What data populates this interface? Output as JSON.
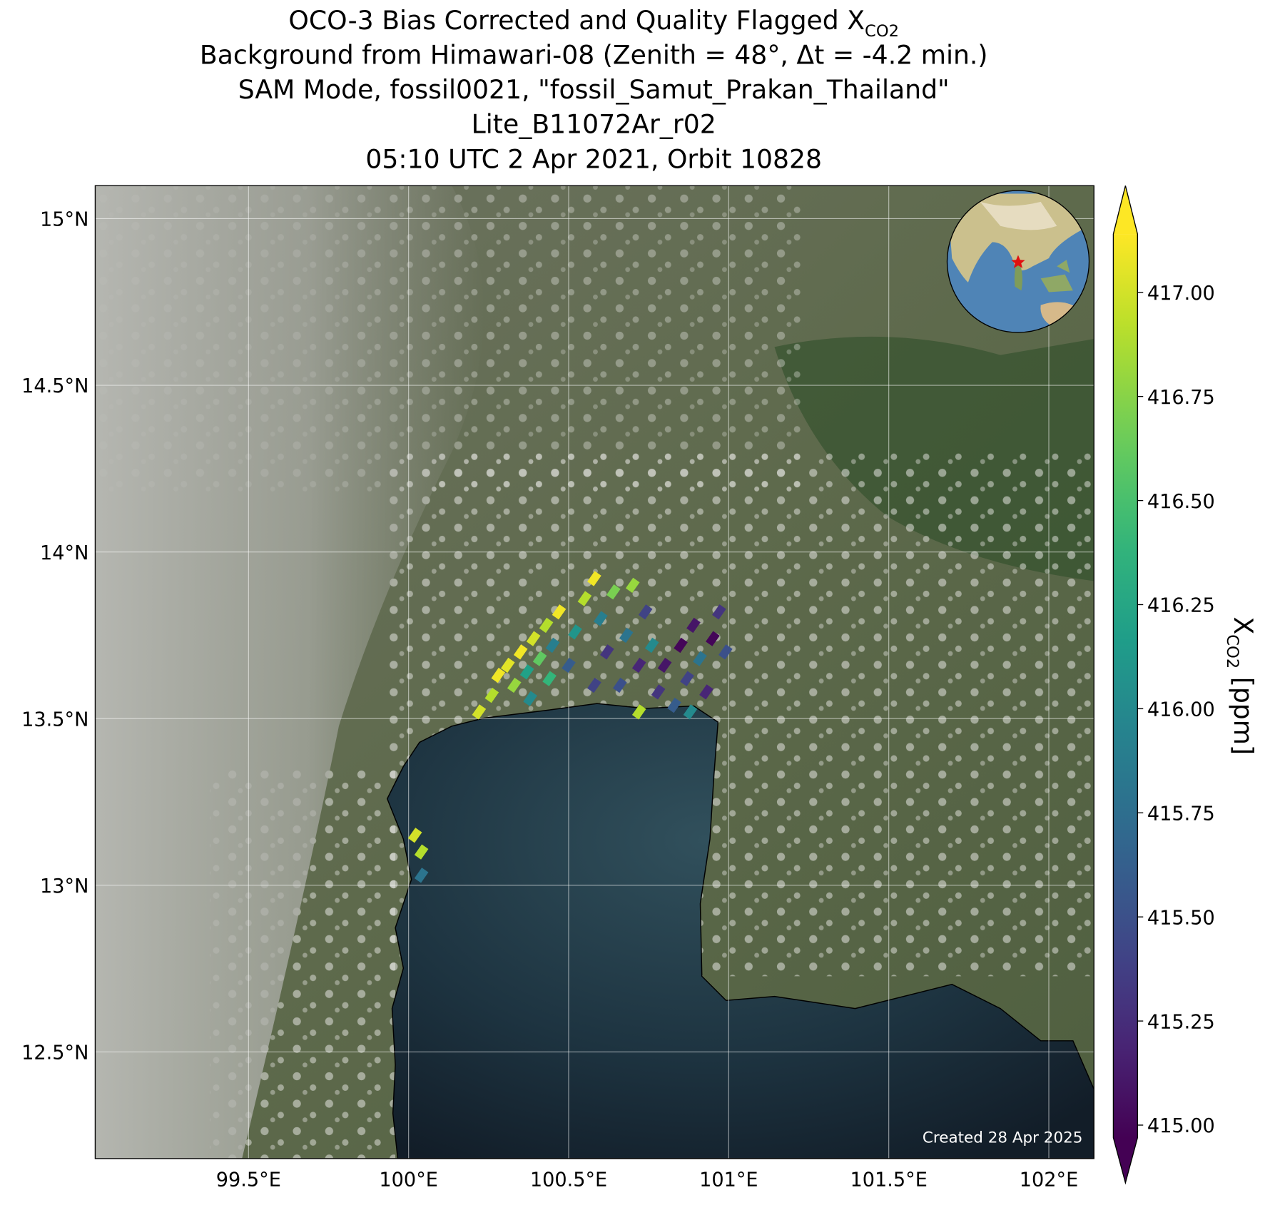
{
  "chart_data": {
    "type": "map-scatter",
    "title_lines": [
      {
        "text": "OCO-3 Bias Corrected and Quality Flagged X",
        "sub": "CO2"
      },
      "Background from Himawari-08 (Zenith = 48°, Δt = -4.2 min.)",
      "SAM Mode, fossil0021, \"fossil_Samut_Prakan_Thailand\"",
      "Lite_B11072Ar_r02",
      "05:10 UTC 2 Apr 2021, Orbit 10828"
    ],
    "colorbar_label": {
      "text": "X",
      "sub": "CO2",
      "unit": " [ppm]"
    },
    "credit": "Created 28 Apr 2025",
    "colormap": "viridis",
    "grid": true,
    "xlim": [
      99.021,
      102.141
    ],
    "ylim": [
      12.18,
      15.099
    ],
    "xticks": [
      {
        "value": 99.5,
        "label": "99.5°E"
      },
      {
        "value": 100,
        "label": "100°E"
      },
      {
        "value": 100.5,
        "label": "100.5°E"
      },
      {
        "value": 101,
        "label": "101°E"
      },
      {
        "value": 101.5,
        "label": "101.5°E"
      },
      {
        "value": 102,
        "label": "102°E"
      }
    ],
    "yticks": [
      {
        "value": 12.5,
        "label": "12.5°N"
      },
      {
        "value": 13,
        "label": "13°N"
      },
      {
        "value": 13.5,
        "label": "13.5°N"
      },
      {
        "value": 14,
        "label": "14°N"
      },
      {
        "value": 14.5,
        "label": "14.5°N"
      },
      {
        "value": 15,
        "label": "15°N"
      }
    ],
    "clim": [
      414.97,
      417.14
    ],
    "cticks": [
      {
        "value": 415,
        "label": "415.00"
      },
      {
        "value": 415.25,
        "label": "415.25"
      },
      {
        "value": 415.5,
        "label": "415.50"
      },
      {
        "value": 415.75,
        "label": "415.75"
      },
      {
        "value": 416,
        "label": "416.00"
      },
      {
        "value": 416.25,
        "label": "416.25"
      },
      {
        "value": 416.5,
        "label": "416.50"
      },
      {
        "value": 416.75,
        "label": "416.75"
      },
      {
        "value": 417,
        "label": "417.00"
      }
    ],
    "x": [
      100.22,
      100.26,
      100.28,
      100.31,
      100.33,
      100.35,
      100.37,
      100.39,
      100.41,
      100.43,
      100.45,
      100.47,
      100.38,
      100.44,
      100.5,
      100.52,
      100.55,
      100.58,
      100.6,
      100.62,
      100.64,
      100.66,
      100.68,
      100.7,
      100.72,
      100.74,
      100.76,
      100.58,
      100.72,
      100.78,
      100.8,
      100.83,
      100.85,
      100.87,
      100.89,
      100.91,
      100.93,
      100.95,
      100.97,
      100.99,
      100.88,
      100.02,
      100.04,
      100.04
    ],
    "y": [
      13.52,
      13.57,
      13.63,
      13.66,
      13.6,
      13.7,
      13.64,
      13.74,
      13.68,
      13.78,
      13.72,
      13.82,
      13.56,
      13.62,
      13.66,
      13.76,
      13.86,
      13.92,
      13.8,
      13.7,
      13.88,
      13.6,
      13.75,
      13.9,
      13.66,
      13.82,
      13.72,
      13.6,
      13.52,
      13.58,
      13.66,
      13.54,
      13.72,
      13.62,
      13.78,
      13.68,
      13.58,
      13.74,
      13.82,
      13.7,
      13.52,
      13.15,
      13.1,
      13.03
    ],
    "values": [
      417.0,
      416.9,
      417.1,
      417.05,
      416.8,
      417.1,
      416.2,
      417.0,
      416.6,
      416.9,
      415.9,
      417.1,
      416.0,
      416.4,
      415.6,
      416.1,
      416.9,
      417.1,
      415.9,
      415.3,
      416.7,
      415.5,
      415.8,
      416.8,
      415.2,
      415.4,
      416.0,
      415.4,
      416.9,
      415.3,
      415.1,
      415.6,
      415.0,
      415.4,
      415.1,
      415.8,
      415.2,
      415.0,
      415.3,
      415.5,
      416.0,
      417.0,
      416.9,
      415.8
    ]
  }
}
